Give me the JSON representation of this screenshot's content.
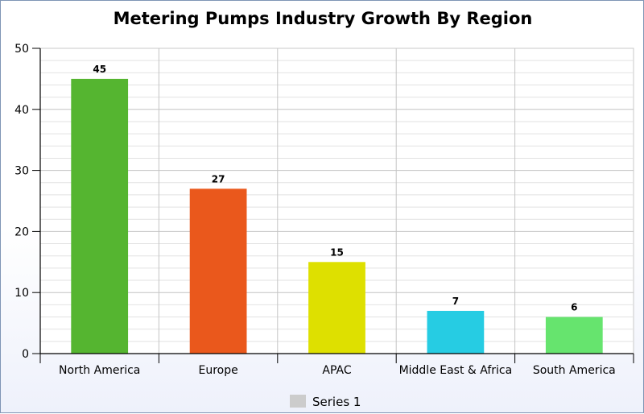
{
  "chart_data": {
    "type": "bar",
    "title": "Metering Pumps Industry Growth By Region",
    "categories": [
      "North America",
      "Europe",
      "APAC",
      "Middle East & Africa",
      "South America"
    ],
    "series": [
      {
        "name": "Series 1",
        "values": [
          45,
          27,
          15,
          7,
          6
        ],
        "legend_color": "#cccccc"
      }
    ],
    "bar_colors": [
      "#55b530",
      "#ea581c",
      "#dee000",
      "#26cce3",
      "#66e46e"
    ],
    "data_labels": [
      "45",
      "27",
      "15",
      "7",
      "6"
    ],
    "ylim": [
      0,
      50
    ],
    "yticks": [
      0,
      10,
      20,
      30,
      40,
      50
    ],
    "y_tick_labels": [
      "0",
      "10",
      "20",
      "30",
      "40",
      "50"
    ],
    "grid": true,
    "legend_position": "bottom-center",
    "xlabel": "",
    "ylabel": ""
  }
}
